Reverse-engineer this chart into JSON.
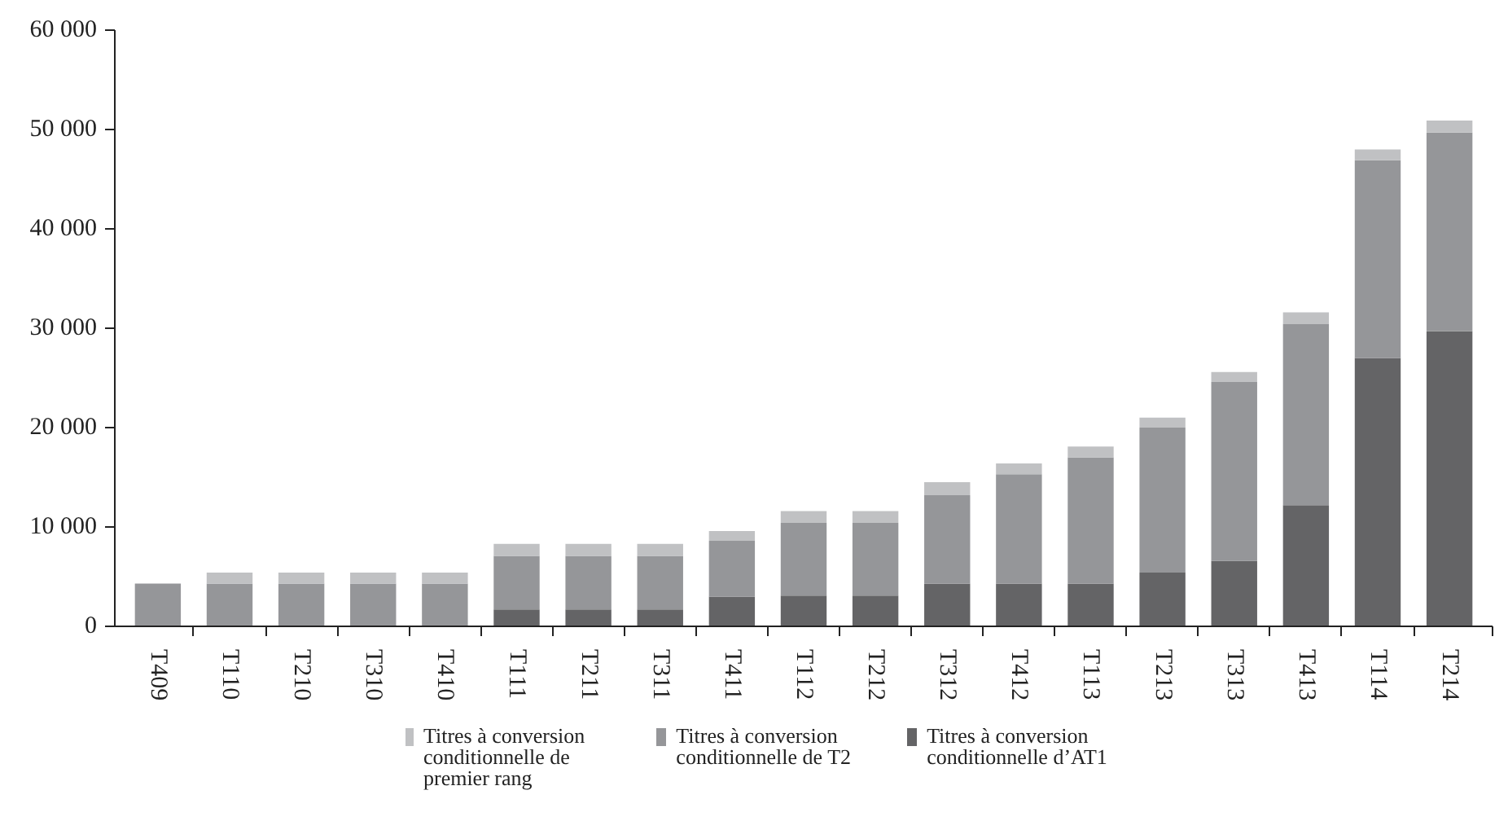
{
  "chart_data": {
    "type": "bar",
    "stacked": true,
    "legend": "bottom",
    "grid": false,
    "categories": [
      "T409",
      "T110",
      "T210",
      "T310",
      "T410",
      "T111",
      "T211",
      "T311",
      "T411",
      "T112",
      "T212",
      "T312",
      "T412",
      "T113",
      "T213",
      "T313",
      "T413",
      "T114",
      "T214"
    ],
    "series": [
      {
        "name": "Titres à conversion conditionnelle d’AT1",
        "color": "#646466",
        "values": [
          0,
          0,
          0,
          0,
          0,
          1700,
          1700,
          1700,
          3000,
          3100,
          3100,
          4300,
          4300,
          4300,
          5400,
          6600,
          12200,
          27000,
          29700
        ]
      },
      {
        "name": "Titres à conversion conditionnelle de T2",
        "color": "#959699",
        "values": [
          4300,
          4300,
          4300,
          4300,
          4300,
          5400,
          5400,
          5400,
          5600,
          7300,
          7300,
          8900,
          11000,
          12700,
          14600,
          18000,
          18200,
          19900,
          20000
        ]
      },
      {
        "name": "Titres à conversion conditionnelle de premier rang",
        "color": "#c0c1c3",
        "values": [
          0,
          1100,
          1100,
          1100,
          1100,
          1200,
          1200,
          1200,
          1000,
          1200,
          1200,
          1300,
          1100,
          1100,
          1000,
          1000,
          1200,
          1100,
          1200
        ]
      }
    ],
    "ylim": [
      0,
      60000
    ],
    "yticks": [
      {
        "value": 0,
        "label": "0"
      },
      {
        "value": 10000,
        "label": "10 000"
      },
      {
        "value": 20000,
        "label": "20 000"
      },
      {
        "value": 30000,
        "label": "30 000"
      },
      {
        "value": 40000,
        "label": "40 000"
      },
      {
        "value": 50000,
        "label": "50 000"
      },
      {
        "value": 60000,
        "label": "60 000"
      }
    ]
  }
}
